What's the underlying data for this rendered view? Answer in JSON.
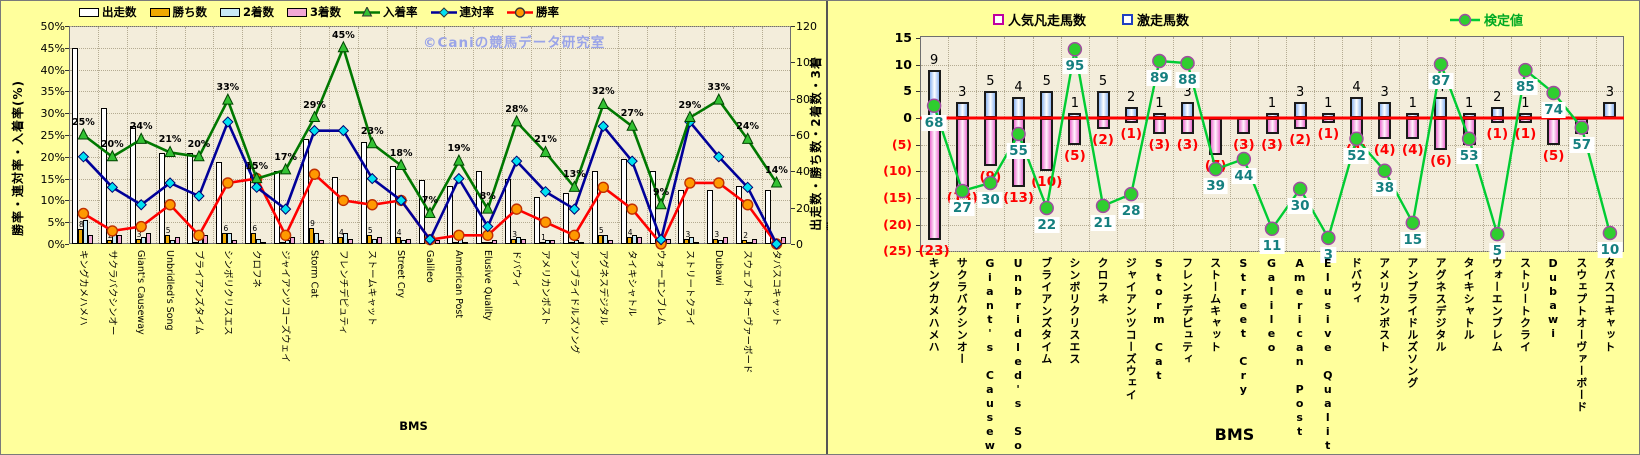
{
  "chart_data": [
    {
      "type": "bar+line combo",
      "title": "",
      "x_title": "BMS",
      "watermark": "©Caniの競馬データ研究室",
      "y_left_title": "勝率・連対率・入着率(%)",
      "y_right_title": "出走数・勝ち数・2着数・3着数",
      "y_left_ticks": [
        "50%",
        "45%",
        "40%",
        "35%",
        "30%",
        "25%",
        "20%",
        "15%",
        "10%",
        "5%",
        "0%"
      ],
      "y_left_range": [
        0,
        50
      ],
      "y_right_ticks": [
        "120",
        "100",
        "80",
        "60",
        "40",
        "20",
        "0"
      ],
      "y_right_range": [
        0,
        120
      ],
      "grid": true,
      "legend_position": "top",
      "legend": [
        {
          "label": "出走数",
          "type": "bar",
          "color": "#FFFFFF"
        },
        {
          "label": "勝ち数",
          "type": "bar",
          "color": "#EFA900"
        },
        {
          "label": "2着数",
          "type": "bar",
          "color": "#C9E9F5"
        },
        {
          "label": "3着数",
          "type": "bar",
          "color": "#F2A8D5"
        },
        {
          "label": "入着率",
          "type": "line",
          "color": "#007800",
          "marker": "triangle",
          "marker_color": "#33C133"
        },
        {
          "label": "連対率",
          "type": "line",
          "color": "#000099",
          "marker": "diamond",
          "marker_color": "#00E0F0"
        },
        {
          "label": "勝率",
          "type": "line",
          "color": "#FF0000",
          "marker": "circle",
          "marker_color": "#FF9900"
        }
      ],
      "categories": [
        "キングカメハメハ",
        "サクラバクシンオー",
        "Giant's Causeway",
        "Unbridled's Song",
        "ブライアンズタイム",
        "シンボリクリスエス",
        "クロフネ",
        "ジャイアンツコーズウェイ",
        "Storm Cat",
        "フレンチデピュティ",
        "ストームキャット",
        "Street Cry",
        "Galileo",
        "American Post",
        "Elusive Quality",
        "ドバウィ",
        "アメリカンポスト",
        "アンブライドルズソング",
        "アグネスデジタル",
        "タイキシャトル",
        "ウォーエンブレム",
        "ストリートクライ",
        "Dubawi",
        "スウェプトオーヴァーボード",
        "タバスコキャット"
      ],
      "series": [
        {
          "name": "出走数",
          "axis": "right",
          "values": [
            108,
            75,
            65,
            50,
            50,
            45,
            44,
            40,
            58,
            37,
            56,
            43,
            35,
            32,
            40,
            36,
            26,
            28,
            40,
            47,
            40,
            30,
            30,
            32,
            30
          ]
        },
        {
          "name": "勝ち数",
          "axis": "right",
          "values": [
            8,
            2,
            3,
            5,
            1,
            6,
            6,
            1,
            9,
            4,
            5,
            4,
            0,
            1,
            1,
            3,
            1,
            1,
            5,
            4,
            0,
            3,
            3,
            2,
            0
          ]
        },
        {
          "name": "2着数",
          "axis": "right",
          "values": [
            13,
            7,
            4,
            2,
            4,
            6,
            3,
            2,
            6,
            6,
            3,
            2,
            0,
            4,
            1,
            4,
            2,
            2,
            5,
            5,
            1,
            4,
            2,
            1,
            0
          ]
        },
        {
          "name": "3着数",
          "axis": "right",
          "values": [
            5,
            5,
            6,
            4,
            5,
            2,
            1,
            4,
            2,
            3,
            4,
            3,
            2,
            1,
            2,
            3,
            2,
            1,
            2,
            4,
            3,
            1,
            4,
            3,
            4
          ]
        },
        {
          "name": "入着率",
          "axis": "left",
          "unit": "%",
          "labeled": true,
          "values": [
            25,
            20,
            24,
            21,
            20,
            33,
            15,
            17,
            29,
            45,
            23,
            18,
            7,
            19,
            8,
            28,
            21,
            13,
            32,
            27,
            9,
            29,
            33,
            24,
            14
          ]
        },
        {
          "name": "連対率",
          "axis": "left",
          "unit": "%",
          "labeled": false,
          "values": [
            20,
            13,
            9,
            14,
            11,
            28,
            13,
            8,
            26,
            26,
            15,
            10,
            1,
            15,
            4,
            19,
            12,
            8,
            27,
            19,
            1,
            28,
            20,
            13,
            0
          ]
        },
        {
          "name": "勝率",
          "axis": "left",
          "unit": "%",
          "labeled": false,
          "values": [
            7,
            3,
            4,
            9,
            2,
            14,
            15,
            2,
            16,
            10,
            9,
            10,
            1,
            2,
            2,
            8,
            5,
            2,
            13,
            8,
            0,
            14,
            14,
            9,
            0
          ]
        }
      ]
    },
    {
      "type": "bar+line combo",
      "title": "",
      "x_title": "BMS",
      "y_ticks": [
        {
          "label": "15",
          "v": 15
        },
        {
          "label": "10",
          "v": 10
        },
        {
          "label": "5",
          "v": 5
        },
        {
          "label": "0",
          "v": 0
        },
        {
          "label": "(5)",
          "v": -5
        },
        {
          "label": "(10)",
          "v": -10
        },
        {
          "label": "(15)",
          "v": -15
        },
        {
          "label": "(20)",
          "v": -20
        },
        {
          "label": "(25)",
          "v": -25
        }
      ],
      "y_range": [
        -25,
        15
      ],
      "zero_line_color": "#FF0000",
      "grid": true,
      "legend_position": "top",
      "legend": [
        {
          "label": "人気凡走馬数",
          "type": "bar",
          "border": "#C000A0"
        },
        {
          "label": "激走馬数",
          "type": "bar",
          "border": "#2040C0"
        },
        {
          "label": "検定値",
          "type": "line",
          "color": "#00CC33",
          "marker": "circle",
          "marker_color": "#2FCE2F",
          "label_color": "#00AA22"
        }
      ],
      "categories": [
        "キングカメハメハ",
        "サクラバクシンオー",
        "Giant's Causeway",
        "Unbridled's Song",
        "ブライアンズタイム",
        "シンボリクリスエス",
        "クロフネ",
        "ジャイアンツコーズウェイ",
        "Storm Cat",
        "フレンチデピュティ",
        "ストームキャット",
        "Street Cry",
        "Galileo",
        "American Post",
        "Elusive Quality",
        "ドバウィ",
        "アメリカンポスト",
        "アンブライドルズソング",
        "アグネスデジタル",
        "タイキシャトル",
        "ウォーエンブレム",
        "ストリートクライ",
        "Dubawi",
        "スウェプトオーヴァーボード",
        "タバスコキャット"
      ],
      "series": [
        {
          "name": "激走馬数",
          "direction": "up",
          "values": [
            9,
            3,
            5,
            4,
            5,
            1,
            5,
            2,
            1,
            3,
            0,
            0,
            1,
            3,
            1,
            4,
            3,
            1,
            4,
            1,
            2,
            1,
            0,
            0,
            3
          ]
        },
        {
          "name": "人気凡走馬数",
          "direction": "down",
          "label_format": "parenthesized",
          "values": [
            23,
            13,
            9,
            13,
            10,
            5,
            2,
            1,
            3,
            3,
            7,
            3,
            3,
            2,
            1,
            4,
            4,
            4,
            6,
            5,
            1,
            1,
            5,
            3,
            0
          ]
        },
        {
          "name": "検定値",
          "labels": [
            68,
            27,
            30,
            55,
            22,
            95,
            21,
            28,
            89,
            88,
            39,
            44,
            11,
            30,
            3,
            52,
            38,
            15,
            87,
            53,
            5,
            85,
            74,
            57,
            10
          ],
          "plot_y": [
            2.3,
            -13.7,
            -12.2,
            -3.0,
            -16.9,
            12.9,
            -16.5,
            -14.3,
            10.7,
            10.3,
            -9.6,
            -7.7,
            -20.8,
            -13.3,
            -22.5,
            -3.9,
            -9.9,
            -19.7,
            10.1,
            -3.9,
            -21.8,
            9.0,
            4.7,
            -1.8,
            -21.6
          ]
        }
      ]
    }
  ]
}
